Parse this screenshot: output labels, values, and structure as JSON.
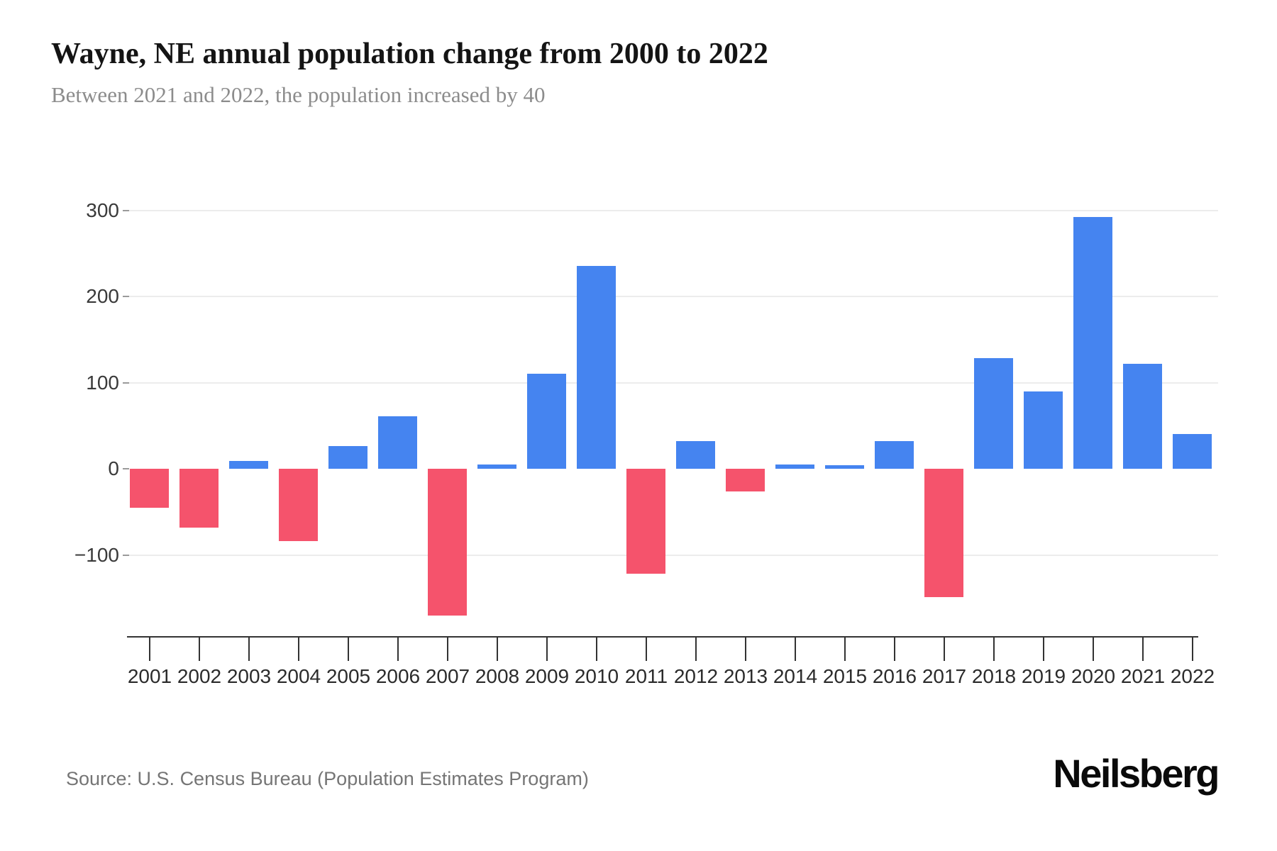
{
  "header": {
    "title": "Wayne, NE annual population change from 2000 to 2022",
    "subtitle": "Between 2021 and 2022, the population increased by 40"
  },
  "footer": {
    "source": "Source: U.S. Census Bureau (Population Estimates Program)",
    "logo": "Neilsberg"
  },
  "chart_data": {
    "type": "bar",
    "title": "Wayne, NE annual population change from 2000 to 2022",
    "subtitle": "Between 2021 and 2022, the population increased by 40",
    "categories": [
      "2001",
      "2002",
      "2003",
      "2004",
      "2005",
      "2006",
      "2007",
      "2008",
      "2009",
      "2010",
      "2011",
      "2012",
      "2013",
      "2014",
      "2015",
      "2016",
      "2017",
      "2018",
      "2019",
      "2020",
      "2021",
      "2022"
    ],
    "values": [
      -45,
      -68,
      9,
      -84,
      26,
      61,
      -170,
      5,
      110,
      235,
      -122,
      32,
      -26,
      5,
      4,
      32,
      -149,
      128,
      90,
      292,
      122,
      40
    ],
    "xlabel": "",
    "ylabel": "",
    "ylim": [
      -196,
      354
    ],
    "yticks": [
      300,
      200,
      100,
      0,
      -100
    ],
    "ytick_labels": [
      "300",
      "200",
      "100",
      "0",
      "−100"
    ],
    "grid": true,
    "legend": false,
    "colors": {
      "positive_bar": "#4584f0",
      "negative_bar": "#f5536c"
    }
  }
}
